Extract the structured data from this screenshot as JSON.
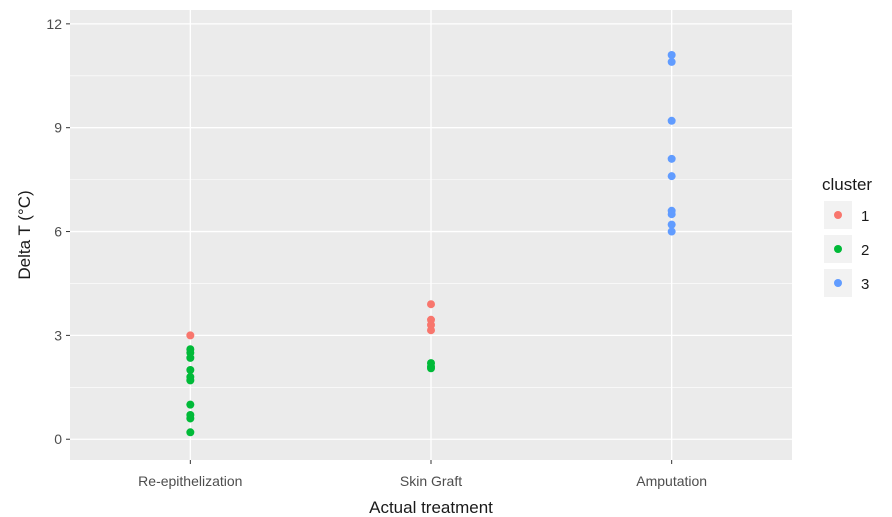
{
  "chart_data": {
    "type": "scatter",
    "title": "",
    "xlabel": "Actual treatment",
    "ylabel": "Delta T (°C)",
    "categories": [
      "Re-epithelization",
      "Skin Graft",
      "Amputation"
    ],
    "ylim": [
      -0.6,
      12.4
    ],
    "yticks": [
      "0",
      "3",
      "6",
      "9",
      "12"
    ],
    "grid": true,
    "legend": {
      "title": "cluster",
      "position": "right",
      "entries": [
        "1",
        "2",
        "3"
      ]
    },
    "colors": {
      "1": "#f8766d",
      "2": "#00ba38",
      "3": "#619cff",
      "panel": "#ebebeb",
      "grid": "#ffffff"
    },
    "series": [
      {
        "name": "1",
        "points": [
          {
            "x": "Re-epithelization",
            "y": 3.0
          },
          {
            "x": "Skin Graft",
            "y": 3.9
          },
          {
            "x": "Skin Graft",
            "y": 3.45
          },
          {
            "x": "Skin Graft",
            "y": 3.3
          },
          {
            "x": "Skin Graft",
            "y": 3.15
          }
        ]
      },
      {
        "name": "2",
        "points": [
          {
            "x": "Re-epithelization",
            "y": 2.6
          },
          {
            "x": "Re-epithelization",
            "y": 2.5
          },
          {
            "x": "Re-epithelization",
            "y": 2.35
          },
          {
            "x": "Re-epithelization",
            "y": 2.0
          },
          {
            "x": "Re-epithelization",
            "y": 1.8
          },
          {
            "x": "Re-epithelization",
            "y": 1.7
          },
          {
            "x": "Re-epithelization",
            "y": 1.0
          },
          {
            "x": "Re-epithelization",
            "y": 0.7
          },
          {
            "x": "Re-epithelization",
            "y": 0.6
          },
          {
            "x": "Re-epithelization",
            "y": 0.2
          },
          {
            "x": "Skin Graft",
            "y": 2.2
          },
          {
            "x": "Skin Graft",
            "y": 2.1
          },
          {
            "x": "Skin Graft",
            "y": 2.05
          }
        ]
      },
      {
        "name": "3",
        "points": [
          {
            "x": "Amputation",
            "y": 11.1
          },
          {
            "x": "Amputation",
            "y": 10.9
          },
          {
            "x": "Amputation",
            "y": 9.2
          },
          {
            "x": "Amputation",
            "y": 8.1
          },
          {
            "x": "Amputation",
            "y": 7.6
          },
          {
            "x": "Amputation",
            "y": 6.6
          },
          {
            "x": "Amputation",
            "y": 6.5
          },
          {
            "x": "Amputation",
            "y": 6.2
          },
          {
            "x": "Amputation",
            "y": 6.0
          }
        ]
      }
    ]
  }
}
